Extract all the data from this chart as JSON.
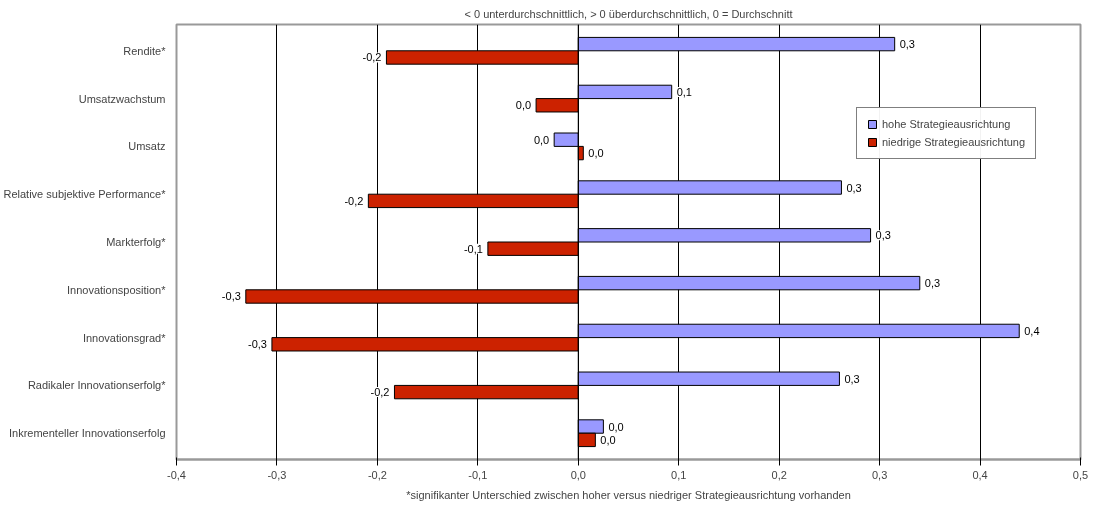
{
  "chart_data": {
    "type": "bar",
    "orientation": "horizontal",
    "title": "< 0 unterdurchschnittlich, > 0 überdurchschnittlich, 0 = Durchschnitt",
    "categories": [
      "Rendite*",
      "Umsatzwachstum",
      "Umsatz",
      "Relative subjektive Performance*",
      "Markterfolg*",
      "Innovationsposition*",
      "Innovationsgrad*",
      "Radikaler Innovationserfolg*",
      "Inkrementeller Innovationserfolg"
    ],
    "series": [
      {
        "name": "hohe Strategieausrichtung",
        "color": "#9999ff",
        "values": [
          0.315,
          0.093,
          -0.024,
          0.262,
          0.291,
          0.34,
          0.439,
          0.26,
          0.025
        ],
        "value_labels": [
          "0,3",
          "0,1",
          "0,0",
          "0,3",
          "0,3",
          "0,3",
          "0,4",
          "0,3",
          "0,0"
        ]
      },
      {
        "name": "niedrige Strategieausrichtung",
        "color": "#cc2200",
        "values": [
          -0.191,
          -0.042,
          0.005,
          -0.209,
          -0.09,
          -0.331,
          -0.305,
          -0.183,
          0.017
        ],
        "value_labels": [
          "-0,2",
          "0,0",
          "0,0",
          "-0,2",
          "-0,1",
          "-0,3",
          "-0,3",
          "-0,2",
          "0,0"
        ]
      }
    ],
    "xlim": [
      -0.4,
      0.5
    ],
    "xticks": [
      {
        "value": -0.4,
        "label": "-0,4"
      },
      {
        "value": -0.3,
        "label": "-0,3"
      },
      {
        "value": -0.2,
        "label": "-0,2"
      },
      {
        "value": -0.1,
        "label": "-0,1"
      },
      {
        "value": 0,
        "label": "0,0"
      },
      {
        "value": 0.1,
        "label": "0,1"
      },
      {
        "value": 0.2,
        "label": "0,2"
      },
      {
        "value": 0.3,
        "label": "0,3"
      },
      {
        "value": 0.4,
        "label": "0,4"
      },
      {
        "value": 0.5,
        "label": "0,5"
      }
    ],
    "grid": "x",
    "legend": "top right",
    "annotations": [
      "*signifikanter Unterschied zwischen hoher versus niedriger Strategieausrichtung vorhanden"
    ]
  }
}
